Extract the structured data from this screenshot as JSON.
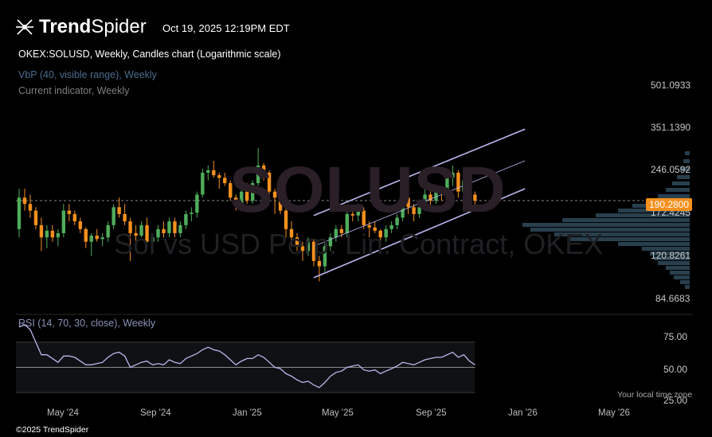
{
  "header": {
    "brand_bold": "Trend",
    "brand_light": "Spider",
    "timestamp": "Oct 19, 2025 12:19PM EDT",
    "symbol_line": "OKEX:SOLUSD, Weekly, Candles chart (Logarithmic scale)",
    "vbp_label": "VbP (40, visible range), Weekly",
    "current_label": "Current indicator, Weekly"
  },
  "watermark": {
    "ticker": "SOLUSD",
    "subtitle": "Sol vs USD Perp. Lin. Contract, OKEX"
  },
  "colors": {
    "up": "#4fad5b",
    "down": "#f5901e",
    "channel": "#b9b7ee",
    "rsi_line": "#b9b7ee",
    "price_badge": "#f5901e",
    "vbp": "#2f4a5c"
  },
  "price_axis": {
    "ticks": [
      "501.0933",
      "351.1390",
      "246.0592",
      "172.4245",
      "120.8261",
      "84.6683"
    ],
    "current_price": "190.2800"
  },
  "rsi": {
    "label": "RSI (14, 70, 30, close), Weekly",
    "ticks": [
      "75.00",
      "50.00",
      "25.00"
    ]
  },
  "x_axis": {
    "ticks": [
      "May '24",
      "Sep '24",
      "Jan '25",
      "May '25",
      "Sep '25",
      "Jan '26",
      "May '26"
    ]
  },
  "footer": {
    "timezone_note": "Your local time zone",
    "copyright": "©2025 TrendSpider"
  },
  "chart_data": {
    "type": "candlestick",
    "scale": "log",
    "ylim": [
      84.6683,
      501.0933
    ],
    "timeframe": "Weekly",
    "start_week": "2024-03-18",
    "weeks": [
      "2024-03-18",
      "2024-03-25",
      "2024-04-01",
      "2024-04-08",
      "2024-04-15",
      "2024-04-22",
      "2024-04-29",
      "2024-05-06",
      "2024-05-13",
      "2024-05-20",
      "2024-05-27",
      "2024-06-03",
      "2024-06-10",
      "2024-06-17",
      "2024-06-24",
      "2024-07-01",
      "2024-07-08",
      "2024-07-15",
      "2024-07-22",
      "2024-07-29",
      "2024-08-05",
      "2024-08-12",
      "2024-08-19",
      "2024-08-26",
      "2024-09-02",
      "2024-09-09",
      "2024-09-16",
      "2024-09-23",
      "2024-09-30",
      "2024-10-07",
      "2024-10-14",
      "2024-10-21",
      "2024-10-28",
      "2024-11-04",
      "2024-11-11",
      "2024-11-18",
      "2024-11-25",
      "2024-12-02",
      "2024-12-09",
      "2024-12-16",
      "2024-12-23",
      "2024-12-30",
      "2025-01-06",
      "2025-01-13",
      "2025-01-20",
      "2025-01-27",
      "2025-02-03",
      "2025-02-10",
      "2025-02-17",
      "2025-02-24",
      "2025-03-03",
      "2025-03-10",
      "2025-03-17",
      "2025-03-24",
      "2025-03-31",
      "2025-04-07",
      "2025-04-14",
      "2025-04-21",
      "2025-04-28",
      "2025-05-05",
      "2025-05-12",
      "2025-05-19",
      "2025-05-26",
      "2025-06-02",
      "2025-06-09",
      "2025-06-16",
      "2025-06-23",
      "2025-06-30",
      "2025-07-07",
      "2025-07-14",
      "2025-07-21",
      "2025-07-28",
      "2025-08-04",
      "2025-08-11",
      "2025-08-18",
      "2025-08-25",
      "2025-09-01",
      "2025-09-08",
      "2025-09-15",
      "2025-09-22",
      "2025-09-29",
      "2025-10-06",
      "2025-10-13"
    ],
    "candles": [
      [
        150,
        210,
        140,
        195
      ],
      [
        195,
        210,
        175,
        185
      ],
      [
        185,
        200,
        165,
        175
      ],
      [
        175,
        180,
        150,
        155
      ],
      [
        155,
        165,
        125,
        140
      ],
      [
        140,
        155,
        128,
        148
      ],
      [
        148,
        155,
        135,
        140
      ],
      [
        140,
        150,
        130,
        145
      ],
      [
        145,
        185,
        140,
        175
      ],
      [
        175,
        185,
        160,
        170
      ],
      [
        170,
        175,
        155,
        160
      ],
      [
        160,
        165,
        145,
        150
      ],
      [
        150,
        152,
        128,
        135
      ],
      [
        135,
        145,
        120,
        142
      ],
      [
        142,
        150,
        135,
        138
      ],
      [
        138,
        145,
        130,
        140
      ],
      [
        140,
        160,
        135,
        155
      ],
      [
        155,
        185,
        150,
        180
      ],
      [
        180,
        195,
        165,
        170
      ],
      [
        170,
        185,
        155,
        160
      ],
      [
        160,
        165,
        115,
        145
      ],
      [
        145,
        155,
        135,
        142
      ],
      [
        142,
        160,
        140,
        155
      ],
      [
        155,
        165,
        130,
        135
      ],
      [
        135,
        145,
        125,
        140
      ],
      [
        140,
        155,
        135,
        150
      ],
      [
        150,
        160,
        140,
        145
      ],
      [
        145,
        165,
        140,
        160
      ],
      [
        160,
        165,
        140,
        145
      ],
      [
        145,
        160,
        140,
        155
      ],
      [
        155,
        175,
        150,
        170
      ],
      [
        170,
        180,
        160,
        172
      ],
      [
        172,
        205,
        165,
        200
      ],
      [
        200,
        248,
        195,
        240
      ],
      [
        240,
        255,
        225,
        245
      ],
      [
        245,
        265,
        230,
        235
      ],
      [
        235,
        240,
        210,
        230
      ],
      [
        230,
        240,
        215,
        220
      ],
      [
        220,
        225,
        190,
        195
      ],
      [
        195,
        200,
        175,
        185
      ],
      [
        185,
        215,
        180,
        205
      ],
      [
        205,
        220,
        185,
        190
      ],
      [
        190,
        225,
        185,
        220
      ],
      [
        220,
        295,
        215,
        255
      ],
      [
        255,
        260,
        225,
        240
      ],
      [
        240,
        245,
        190,
        205
      ],
      [
        205,
        210,
        170,
        195
      ],
      [
        195,
        200,
        170,
        175
      ],
      [
        175,
        180,
        140,
        150
      ],
      [
        150,
        160,
        130,
        140
      ],
      [
        140,
        145,
        125,
        130
      ],
      [
        130,
        135,
        115,
        125
      ],
      [
        125,
        140,
        120,
        135
      ],
      [
        135,
        138,
        110,
        115
      ],
      [
        115,
        120,
        97,
        110
      ],
      [
        110,
        135,
        105,
        130
      ],
      [
        130,
        145,
        125,
        140
      ],
      [
        140,
        155,
        135,
        150
      ],
      [
        150,
        155,
        140,
        145
      ],
      [
        145,
        175,
        140,
        170
      ],
      [
        170,
        180,
        160,
        168
      ],
      [
        168,
        185,
        160,
        175
      ],
      [
        175,
        180,
        150,
        155
      ],
      [
        155,
        160,
        140,
        152
      ],
      [
        152,
        160,
        145,
        148
      ],
      [
        148,
        150,
        130,
        140
      ],
      [
        140,
        155,
        135,
        150
      ],
      [
        150,
        160,
        145,
        155
      ],
      [
        155,
        170,
        150,
        165
      ],
      [
        165,
        205,
        160,
        195
      ],
      [
        195,
        200,
        170,
        180
      ],
      [
        180,
        185,
        160,
        170
      ],
      [
        170,
        185,
        165,
        180
      ],
      [
        180,
        210,
        175,
        200
      ],
      [
        200,
        210,
        180,
        190
      ],
      [
        190,
        215,
        185,
        210
      ],
      [
        210,
        215,
        190,
        205
      ],
      [
        205,
        235,
        200,
        230
      ],
      [
        230,
        255,
        215,
        240
      ],
      [
        240,
        245,
        195,
        205
      ],
      [
        205,
        235,
        200,
        225
      ],
      [
        225,
        240,
        175,
        200
      ],
      [
        200,
        205,
        180,
        190
      ]
    ],
    "rsi_values": [
      82,
      84,
      80,
      70,
      60,
      60,
      57,
      54,
      59,
      59,
      58,
      55,
      52,
      52,
      53,
      54,
      58,
      61,
      62,
      59,
      50,
      52,
      54,
      55,
      52,
      53,
      52,
      56,
      54,
      53,
      57,
      59,
      61,
      64,
      66,
      64,
      63,
      60,
      56,
      52,
      55,
      57,
      57,
      60,
      58,
      54,
      50,
      49,
      45,
      43,
      40,
      38,
      39,
      36,
      34,
      38,
      43,
      46,
      47,
      50,
      51,
      52,
      48,
      47,
      48,
      45,
      47,
      49,
      51,
      54,
      53,
      52,
      54,
      56,
      57,
      58,
      58,
      60,
      62,
      58,
      60,
      55,
      52
    ],
    "channel": {
      "upper": [
        [
          "2025-03-24",
          168
        ],
        [
          "2025-10-13",
          262
        ],
        [
          "2025-12-15",
          345
        ]
      ],
      "middle": [
        [
          "2025-03-24",
          130
        ],
        [
          "2025-10-13",
          205
        ],
        [
          "2025-12-15",
          265
        ]
      ],
      "lower": [
        [
          "2025-03-24",
          100
        ],
        [
          "2025-10-13",
          160
        ],
        [
          "2025-12-15",
          210
        ]
      ]
    },
    "rsi_ylim": [
      25,
      75
    ]
  }
}
